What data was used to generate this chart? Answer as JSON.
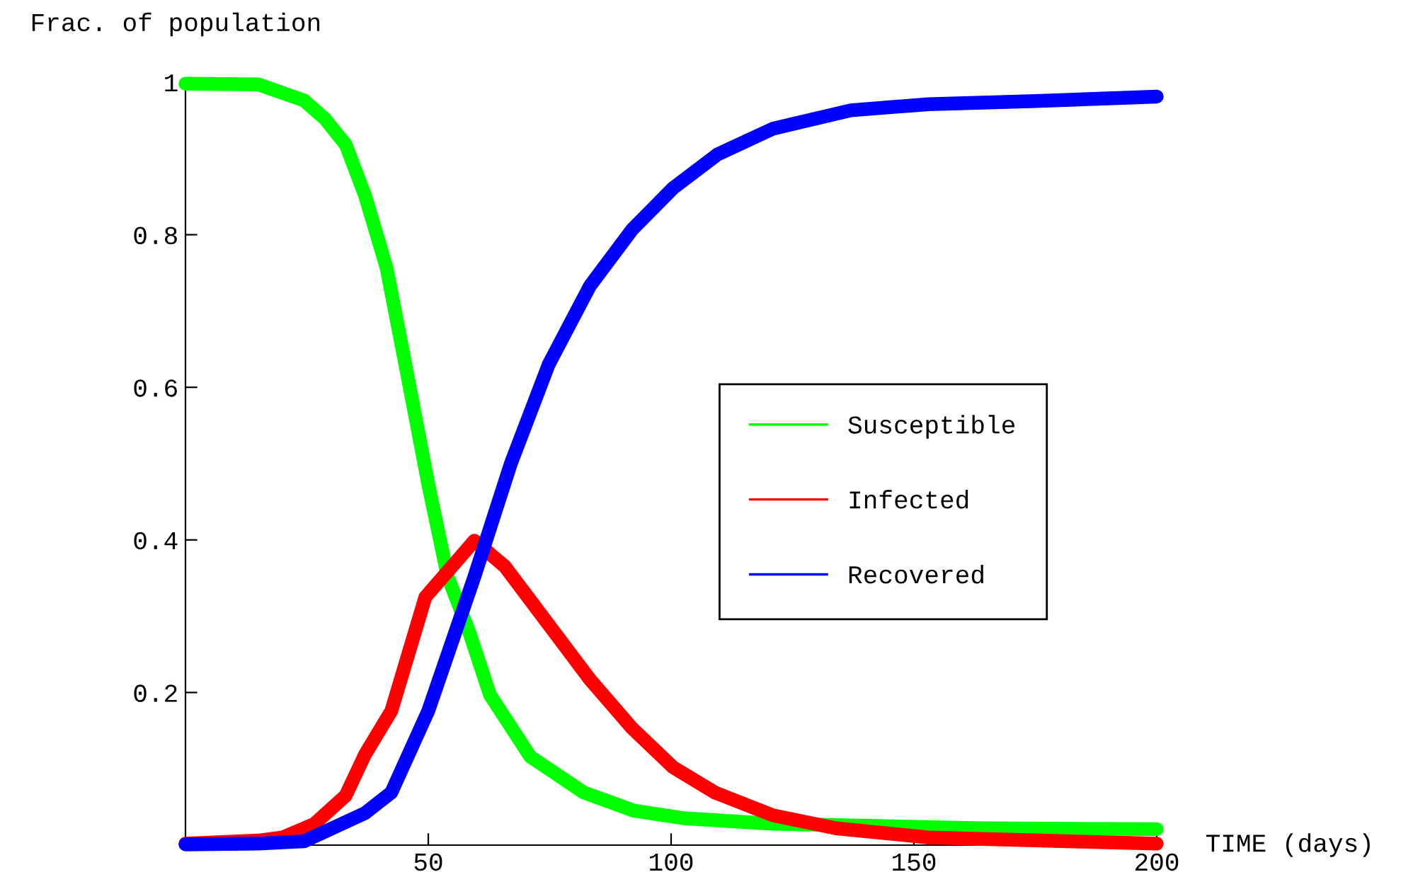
{
  "chart_data": {
    "type": "line",
    "ylabel": "Frac. of population",
    "xlabel": "TIME (days)",
    "xlim": [
      0,
      200
    ],
    "ylim": [
      0,
      1
    ],
    "xticks": [
      50,
      100,
      150,
      200
    ],
    "yticks": [
      0.2,
      0.4,
      0.6,
      0.8,
      1
    ],
    "grid": false,
    "legend": "right",
    "marker": "none",
    "line_style": "solid",
    "series": [
      {
        "name": "Susceptible",
        "color": "#00ff00",
        "x": [
          0,
          15,
          24.4,
          28.7,
          33,
          37,
          41.4,
          45.7,
          50,
          54,
          58.5,
          62.7,
          71,
          82,
          92.4,
          103,
          121,
          164,
          200
        ],
        "values": [
          0.998,
          0.997,
          0.976,
          0.952,
          0.918,
          0.851,
          0.757,
          0.616,
          0.473,
          0.352,
          0.278,
          0.197,
          0.116,
          0.069,
          0.045,
          0.035,
          0.028,
          0.022,
          0.021
        ]
      },
      {
        "name": "Infected",
        "color": "#ff0000",
        "x": [
          0,
          15,
          20,
          26.6,
          33,
          37,
          42.4,
          49.4,
          59.5,
          65.8,
          83.3,
          92,
          100.4,
          109,
          121,
          134,
          153,
          200
        ],
        "values": [
          0.002,
          0.006,
          0.01,
          0.028,
          0.065,
          0.119,
          0.176,
          0.325,
          0.399,
          0.365,
          0.217,
          0.153,
          0.102,
          0.069,
          0.039,
          0.022,
          0.01,
          0.002
        ]
      },
      {
        "name": "Recovered",
        "color": "#0000ff",
        "x": [
          0,
          15,
          24.4,
          37,
          42.4,
          50,
          59.5,
          67,
          74.8,
          83.3,
          92,
          100.4,
          109.5,
          121,
          137,
          153,
          174,
          200
        ],
        "values": [
          0.001,
          0.002,
          0.005,
          0.042,
          0.069,
          0.176,
          0.352,
          0.5,
          0.63,
          0.733,
          0.807,
          0.861,
          0.905,
          0.939,
          0.963,
          0.971,
          0.975,
          0.981
        ]
      }
    ]
  }
}
